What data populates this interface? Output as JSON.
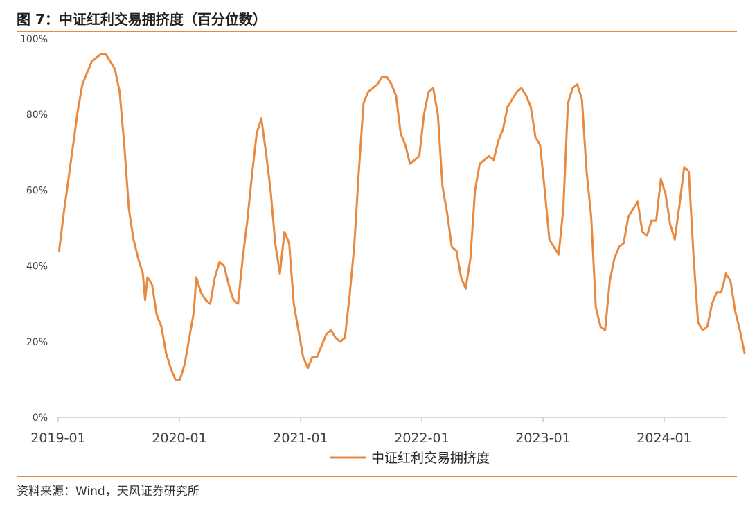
{
  "figure": {
    "title": "图 7：中证红利交易拥挤度（百分位数）",
    "source": "资料来源：Wind，天风证券研究所",
    "accent_color": "#e8893f"
  },
  "chart_data": {
    "type": "line",
    "title": "",
    "xlabel": "",
    "ylabel": "",
    "ylim": [
      0,
      100
    ],
    "y_ticks": [
      "0%",
      "20%",
      "40%",
      "60%",
      "80%",
      "100%"
    ],
    "x_ticks": [
      "2019-01",
      "2020-01",
      "2021-01",
      "2022-01",
      "2023-01",
      "2024-01"
    ],
    "grid": false,
    "legend_position": "bottom",
    "series": [
      {
        "name": "中证红利交易拥挤度",
        "color": "#e8893f",
        "points": [
          [
            "2019-01-04",
            44
          ],
          [
            "2019-01-18",
            54
          ],
          [
            "2019-02-01",
            63
          ],
          [
            "2019-02-15",
            72
          ],
          [
            "2019-03-01",
            81
          ],
          [
            "2019-03-15",
            88
          ],
          [
            "2019-03-29",
            91
          ],
          [
            "2019-04-12",
            94
          ],
          [
            "2019-04-26",
            95
          ],
          [
            "2019-05-10",
            96
          ],
          [
            "2019-05-24",
            96
          ],
          [
            "2019-06-07",
            94
          ],
          [
            "2019-06-21",
            92
          ],
          [
            "2019-07-05",
            86
          ],
          [
            "2019-07-19",
            72
          ],
          [
            "2019-08-02",
            55
          ],
          [
            "2019-08-16",
            47
          ],
          [
            "2019-08-30",
            42
          ],
          [
            "2019-09-13",
            38
          ],
          [
            "2019-09-20",
            31
          ],
          [
            "2019-09-27",
            37
          ],
          [
            "2019-10-11",
            35
          ],
          [
            "2019-10-25",
            27
          ],
          [
            "2019-11-08",
            24
          ],
          [
            "2019-11-22",
            17
          ],
          [
            "2019-12-06",
            13
          ],
          [
            "2019-12-20",
            10
          ],
          [
            "2020-01-03",
            10
          ],
          [
            "2020-01-17",
            14
          ],
          [
            "2020-01-31",
            21
          ],
          [
            "2020-02-14",
            28
          ],
          [
            "2020-02-21",
            37
          ],
          [
            "2020-03-06",
            33
          ],
          [
            "2020-03-20",
            31
          ],
          [
            "2020-04-03",
            30
          ],
          [
            "2020-04-17",
            37
          ],
          [
            "2020-05-01",
            41
          ],
          [
            "2020-05-15",
            40
          ],
          [
            "2020-05-29",
            35
          ],
          [
            "2020-06-12",
            31
          ],
          [
            "2020-06-26",
            30
          ],
          [
            "2020-07-10",
            42
          ],
          [
            "2020-07-24",
            52
          ],
          [
            "2020-08-07",
            64
          ],
          [
            "2020-08-21",
            75
          ],
          [
            "2020-09-04",
            79
          ],
          [
            "2020-09-18",
            70
          ],
          [
            "2020-10-02",
            60
          ],
          [
            "2020-10-16",
            46
          ],
          [
            "2020-10-30",
            38
          ],
          [
            "2020-11-13",
            49
          ],
          [
            "2020-11-27",
            46
          ],
          [
            "2020-12-11",
            30
          ],
          [
            "2020-12-25",
            23
          ],
          [
            "2021-01-08",
            16
          ],
          [
            "2021-01-22",
            13
          ],
          [
            "2021-02-05",
            16
          ],
          [
            "2021-02-19",
            16
          ],
          [
            "2021-03-05",
            19
          ],
          [
            "2021-03-19",
            22
          ],
          [
            "2021-04-02",
            23
          ],
          [
            "2021-04-16",
            21
          ],
          [
            "2021-04-30",
            20
          ],
          [
            "2021-05-14",
            21
          ],
          [
            "2021-05-28",
            32
          ],
          [
            "2021-06-11",
            45
          ],
          [
            "2021-06-25",
            65
          ],
          [
            "2021-07-09",
            83
          ],
          [
            "2021-07-23",
            86
          ],
          [
            "2021-08-06",
            87
          ],
          [
            "2021-08-20",
            88
          ],
          [
            "2021-09-03",
            90
          ],
          [
            "2021-09-17",
            90
          ],
          [
            "2021-10-01",
            88
          ],
          [
            "2021-10-15",
            85
          ],
          [
            "2021-10-29",
            75
          ],
          [
            "2021-11-12",
            72
          ],
          [
            "2021-11-26",
            67
          ],
          [
            "2021-12-10",
            68
          ],
          [
            "2021-12-24",
            69
          ],
          [
            "2022-01-07",
            80
          ],
          [
            "2022-01-21",
            86
          ],
          [
            "2022-02-04",
            87
          ],
          [
            "2022-02-18",
            80
          ],
          [
            "2022-03-04",
            61
          ],
          [
            "2022-03-18",
            54
          ],
          [
            "2022-04-01",
            45
          ],
          [
            "2022-04-15",
            44
          ],
          [
            "2022-04-29",
            37
          ],
          [
            "2022-05-13",
            34
          ],
          [
            "2022-05-27",
            42
          ],
          [
            "2022-06-10",
            60
          ],
          [
            "2022-06-24",
            67
          ],
          [
            "2022-07-08",
            68
          ],
          [
            "2022-07-22",
            69
          ],
          [
            "2022-08-05",
            68
          ],
          [
            "2022-08-19",
            73
          ],
          [
            "2022-09-02",
            76
          ],
          [
            "2022-09-16",
            82
          ],
          [
            "2022-09-30",
            84
          ],
          [
            "2022-10-14",
            86
          ],
          [
            "2022-10-28",
            87
          ],
          [
            "2022-11-11",
            85
          ],
          [
            "2022-11-25",
            82
          ],
          [
            "2022-12-09",
            74
          ],
          [
            "2022-12-23",
            72
          ],
          [
            "2023-01-06",
            60
          ],
          [
            "2023-01-20",
            47
          ],
          [
            "2023-02-03",
            45
          ],
          [
            "2023-02-17",
            43
          ],
          [
            "2023-03-03",
            55
          ],
          [
            "2023-03-17",
            83
          ],
          [
            "2023-03-31",
            87
          ],
          [
            "2023-04-14",
            88
          ],
          [
            "2023-04-28",
            84
          ],
          [
            "2023-05-12",
            65
          ],
          [
            "2023-05-26",
            53
          ],
          [
            "2023-06-09",
            29
          ],
          [
            "2023-06-23",
            24
          ],
          [
            "2023-07-07",
            23
          ],
          [
            "2023-07-21",
            36
          ],
          [
            "2023-08-04",
            42
          ],
          [
            "2023-08-18",
            45
          ],
          [
            "2023-09-01",
            46
          ],
          [
            "2023-09-15",
            53
          ],
          [
            "2023-09-29",
            55
          ],
          [
            "2023-10-13",
            57
          ],
          [
            "2023-10-27",
            49
          ],
          [
            "2023-11-10",
            48
          ],
          [
            "2023-11-24",
            52
          ],
          [
            "2023-12-08",
            52
          ],
          [
            "2023-12-22",
            63
          ],
          [
            "2024-01-05",
            59
          ],
          [
            "2024-01-19",
            51
          ],
          [
            "2024-02-02",
            47
          ],
          [
            "2024-02-16",
            56
          ],
          [
            "2024-03-01",
            66
          ],
          [
            "2024-03-15",
            65
          ],
          [
            "2024-03-29",
            43
          ],
          [
            "2024-04-12",
            25
          ],
          [
            "2024-04-26",
            23
          ],
          [
            "2024-05-10",
            24
          ],
          [
            "2024-05-24",
            30
          ],
          [
            "2024-06-07",
            33
          ],
          [
            "2024-06-21",
            33
          ],
          [
            "2024-07-05",
            38
          ],
          [
            "2024-07-19",
            36
          ],
          [
            "2024-08-02",
            28
          ],
          [
            "2024-08-16",
            23
          ],
          [
            "2024-08-30",
            17
          ]
        ]
      }
    ]
  }
}
